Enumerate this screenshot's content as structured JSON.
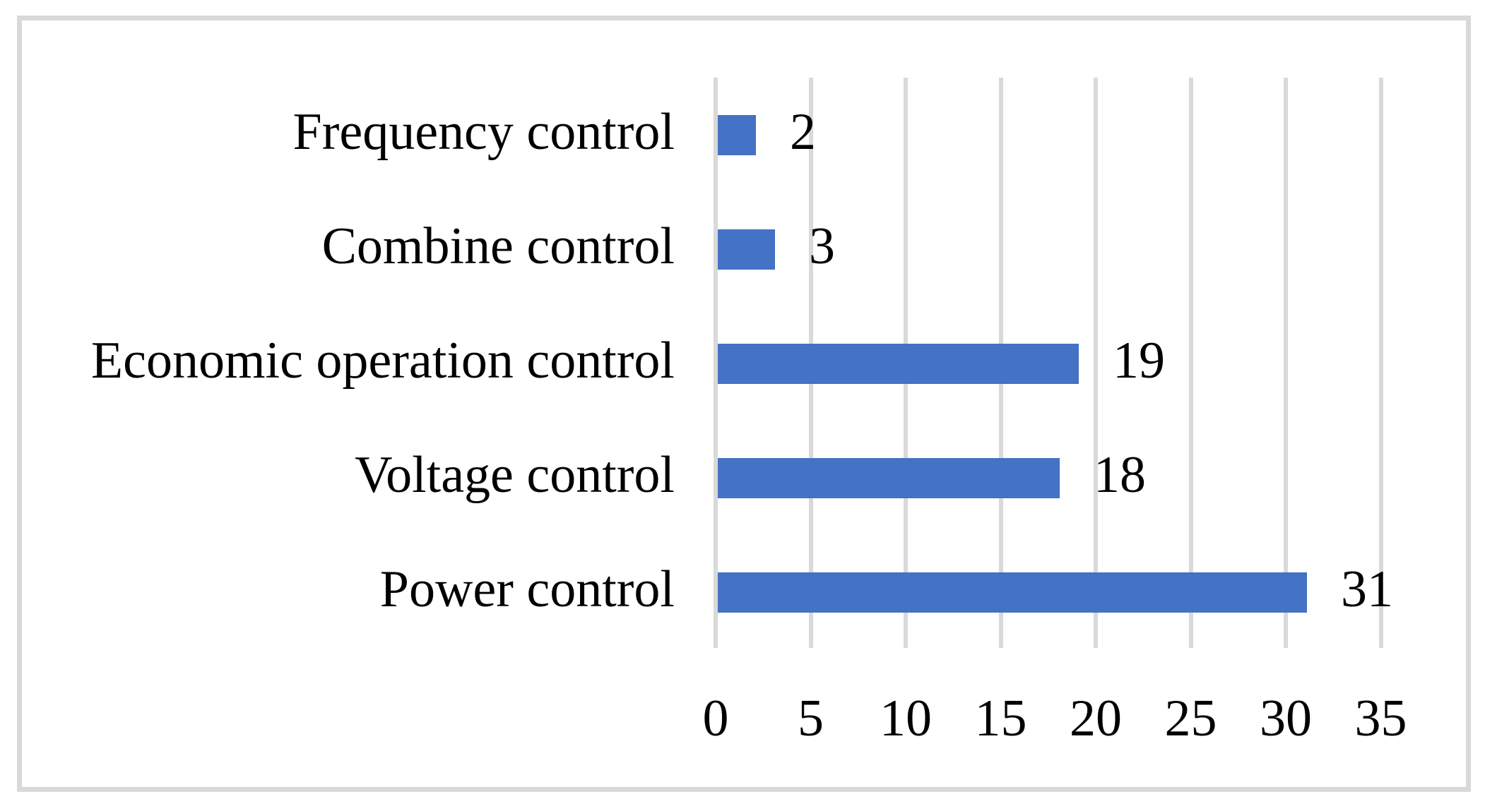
{
  "chart_data": {
    "type": "bar",
    "orientation": "horizontal",
    "title": "",
    "xlabel": "",
    "ylabel": "",
    "categories": [
      "Frequency control",
      "Combine control",
      "Economic operation control",
      "Voltage control",
      "Power control"
    ],
    "values": [
      2,
      3,
      19,
      18,
      31
    ],
    "show_data_labels": true,
    "xlim": [
      0,
      35
    ],
    "xticks": [
      0,
      5,
      10,
      15,
      20,
      25,
      30,
      35
    ],
    "grid": "vertical gridlines on",
    "legend_position": "none",
    "colors": {
      "bar": "#4472C4",
      "gridline": "#D9D9D9",
      "frame_border": "#D9D9D9",
      "text": "#000000",
      "background": "#FFFFFF"
    }
  }
}
